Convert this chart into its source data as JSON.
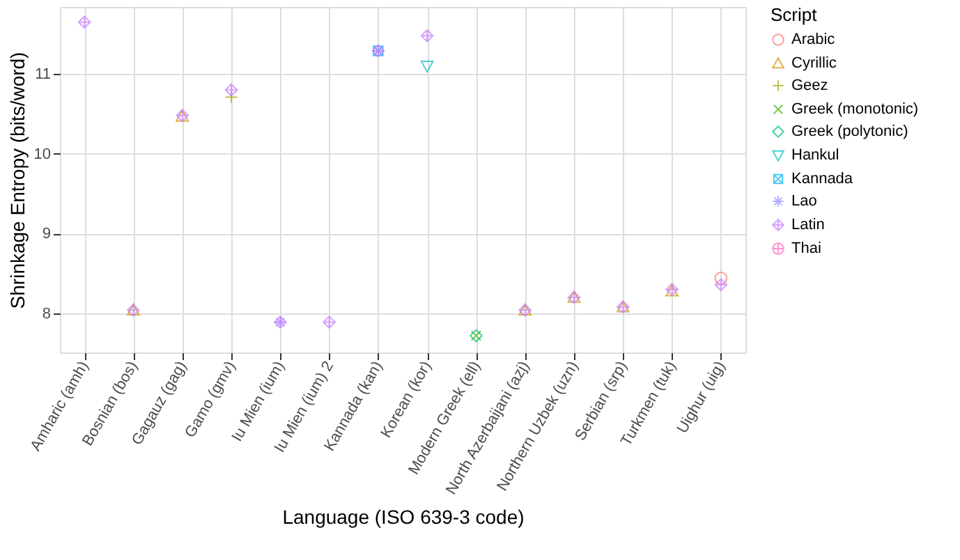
{
  "chart_data": {
    "type": "scatter",
    "xlabel": "Language (ISO 639-3 code)",
    "ylabel": "Shrinkage Entropy (bits/word)",
    "legend_title": "Script",
    "categories": [
      "Amharic (amh)",
      "Bosnian (bos)",
      "Gagauz (gag)",
      "Gamo (gmv)",
      "Iu Mien (ium)",
      "Iu Mien (ium) 2",
      "Kannada (kan)",
      "Korean (kor)",
      "Modern Greek (ell)",
      "North Azerbaijani (azj)",
      "Northern Uzbek (uzn)",
      "Serbian (srp)",
      "Turkmen (tuk)",
      "Uighur (uig)"
    ],
    "ylim": [
      7.51,
      11.84
    ],
    "yticks": [
      8,
      9,
      10,
      11
    ],
    "grid": true,
    "legend": "right",
    "series": [
      {
        "name": "Arabic",
        "color": "#F8766D",
        "marker": "circle",
        "values": [
          null,
          null,
          null,
          null,
          null,
          null,
          null,
          null,
          null,
          null,
          null,
          null,
          null,
          8.44
        ]
      },
      {
        "name": "Cyrillic",
        "color": "#D89000",
        "marker": "triangle",
        "values": [
          null,
          8.04,
          10.47,
          null,
          null,
          null,
          null,
          null,
          null,
          8.04,
          8.2,
          8.08,
          8.28,
          null
        ]
      },
      {
        "name": "Geez",
        "color": "#A3A500",
        "marker": "cross",
        "values": [
          null,
          null,
          null,
          10.71,
          null,
          null,
          null,
          null,
          null,
          null,
          null,
          null,
          null,
          null
        ]
      },
      {
        "name": "Greek (monotonic)",
        "color": "#39B600",
        "marker": "cross",
        "values": [
          null,
          null,
          null,
          null,
          null,
          null,
          null,
          null,
          7.72,
          null,
          null,
          null,
          null,
          null
        ]
      },
      {
        "name": "Greek (polytonic)",
        "color": "#00BF7D",
        "marker": "diamond",
        "values": [
          null,
          null,
          null,
          null,
          null,
          null,
          null,
          null,
          7.72,
          null,
          null,
          null,
          null,
          null
        ]
      },
      {
        "name": "Hankul",
        "color": "#00BFC4",
        "marker": "triangle",
        "values": [
          null,
          null,
          null,
          null,
          null,
          null,
          null,
          11.1,
          null,
          null,
          null,
          null,
          null,
          null
        ]
      },
      {
        "name": "Kannada",
        "color": "#00B0F6",
        "marker": "cross",
        "values": [
          null,
          null,
          null,
          null,
          null,
          null,
          11.29,
          null,
          null,
          null,
          null,
          null,
          null,
          null
        ]
      },
      {
        "name": "Lao",
        "color": "#9590FF",
        "marker": "cross",
        "values": [
          null,
          null,
          null,
          null,
          7.89,
          null,
          11.29,
          null,
          null,
          null,
          null,
          null,
          null,
          null
        ]
      },
      {
        "name": "Latin",
        "color": "#C77CFF",
        "marker": "cross",
        "values": [
          11.65,
          8.04,
          10.48,
          10.8,
          7.89,
          7.89,
          11.29,
          11.48,
          null,
          8.04,
          8.2,
          8.08,
          8.3,
          8.36
        ]
      },
      {
        "name": "Thai",
        "color": "#FF61C3",
        "marker": "circle",
        "values": [
          null,
          null,
          null,
          null,
          null,
          null,
          null,
          null,
          null,
          null,
          null,
          null,
          null,
          null
        ]
      }
    ]
  }
}
